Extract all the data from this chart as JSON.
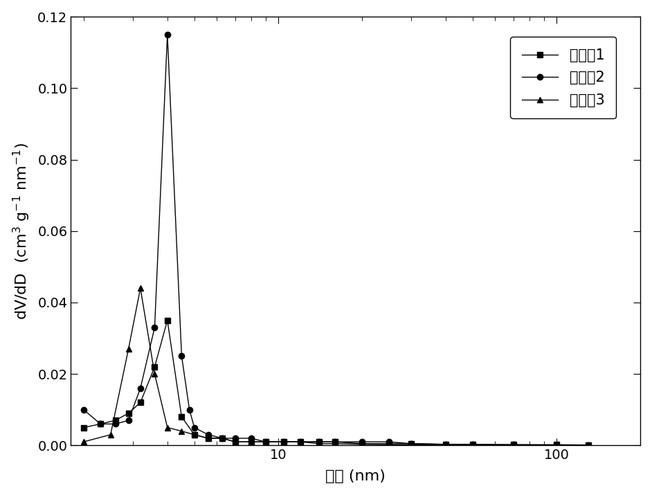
{
  "series1_x": [
    2.0,
    2.3,
    2.6,
    2.9,
    3.2,
    3.6,
    4.0,
    4.5,
    5.0,
    5.6,
    6.3,
    7.0,
    8.0,
    9.0,
    10.5,
    12.0,
    14.0,
    16.0,
    20.0,
    25.0,
    30.0,
    40.0,
    50.0,
    70.0,
    100.0,
    130.0
  ],
  "series1_y": [
    0.005,
    0.006,
    0.007,
    0.009,
    0.012,
    0.022,
    0.035,
    0.008,
    0.003,
    0.002,
    0.002,
    0.001,
    0.001,
    0.001,
    0.001,
    0.001,
    0.001,
    0.001,
    0.0005,
    0.0005,
    0.0005,
    0.0003,
    0.0003,
    0.0002,
    0.0002,
    0.0001
  ],
  "series2_x": [
    2.0,
    2.3,
    2.6,
    2.9,
    3.2,
    3.6,
    4.0,
    4.5,
    4.8,
    5.0,
    5.6,
    6.3,
    7.0,
    8.0,
    9.0,
    10.5,
    12.0,
    14.0,
    16.0,
    20.0,
    25.0,
    30.0,
    40.0,
    50.0,
    70.0,
    100.0,
    130.0
  ],
  "series2_y": [
    0.01,
    0.006,
    0.006,
    0.007,
    0.016,
    0.033,
    0.115,
    0.025,
    0.01,
    0.005,
    0.003,
    0.002,
    0.002,
    0.002,
    0.001,
    0.001,
    0.001,
    0.001,
    0.001,
    0.001,
    0.001,
    0.0005,
    0.0003,
    0.0002,
    0.0002,
    0.0001,
    0.0001
  ],
  "series3_x": [
    2.0,
    2.5,
    2.9,
    3.2,
    3.6,
    4.0,
    4.5,
    5.0,
    5.6,
    6.3,
    7.0,
    8.0,
    9.0,
    10.5,
    12.0,
    14.0,
    16.0,
    20.0,
    25.0,
    30.0,
    40.0,
    50.0,
    70.0,
    100.0,
    130.0
  ],
  "series3_y": [
    0.001,
    0.003,
    0.027,
    0.044,
    0.02,
    0.005,
    0.004,
    0.003,
    0.002,
    0.002,
    0.001,
    0.001,
    0.001,
    0.001,
    0.001,
    0.0005,
    0.0005,
    0.0003,
    0.0002,
    0.0002,
    0.0001,
    0.0001,
    0.0001,
    0.0001,
    0.0001
  ],
  "xlabel": "孔径 (nm)",
  "ylabel_line1": "dV/dD",
  "ylabel_line2": "(cm³ g⁻¹ nm⁻¹)",
  "legend_labels": [
    "实施例1",
    "实施例2",
    "实施例3"
  ],
  "xlim": [
    1.8,
    200
  ],
  "ylim": [
    0,
    0.12
  ],
  "ytick_values": [
    0.0,
    0.02,
    0.04,
    0.06,
    0.08,
    0.1,
    0.12
  ],
  "ytick_labels": [
    "0.00",
    "0.02",
    "0.04",
    "0.06",
    "0.08",
    "0.10",
    "0.12"
  ],
  "color": "#000000",
  "marker1": "s",
  "marker2": "o",
  "marker3": "^",
  "markersize": 6,
  "linewidth": 1.0,
  "fontsize_label": 16,
  "fontsize_tick": 14,
  "fontsize_legend": 15
}
